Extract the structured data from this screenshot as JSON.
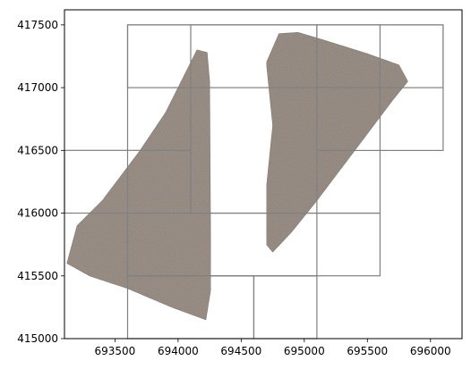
{
  "chart_data": {
    "type": "map",
    "title": "",
    "xlabel": "",
    "ylabel": "",
    "xlim": [
      693100,
      696250
    ],
    "ylim": [
      415000,
      417620
    ],
    "x_ticks": [
      693500,
      694000,
      694500,
      695000,
      695500,
      696000
    ],
    "y_ticks": [
      415000,
      415500,
      416000,
      416500,
      417000,
      417500
    ],
    "grid": false,
    "grid_lines": [
      {
        "x0": 693600,
        "y0": 415500,
        "x1": 695100,
        "y1": 417500
      },
      {
        "x0": 693600,
        "y0": 415000,
        "x1": 694600,
        "y1": 415500
      },
      {
        "x0": 694600,
        "y0": 415000,
        "x1": 695100,
        "y1": 415500
      },
      {
        "x0": 693600,
        "y0": 415500,
        "x1": 695600,
        "y1": 416000
      },
      {
        "x0": 694100,
        "y0": 416000,
        "x1": 695600,
        "y1": 417500
      },
      {
        "x0": 693100,
        "y0": 416000,
        "x1": 694100,
        "y1": 416500
      },
      {
        "x0": 695100,
        "y0": 416500,
        "x1": 696100,
        "y1": 417500
      },
      {
        "x0": 693600,
        "y0": 417000,
        "x1": 696100,
        "y1": 417500
      }
    ],
    "footprints": [
      {
        "name": "",
        "color": "#8c8078",
        "polygon": [
          [
            694150,
            417300
          ],
          [
            694230,
            417280
          ],
          [
            694250,
            417050
          ],
          [
            694260,
            415400
          ],
          [
            694220,
            415150
          ],
          [
            693950,
            415250
          ],
          [
            693600,
            415400
          ],
          [
            693300,
            415500
          ],
          [
            693120,
            415600
          ],
          [
            693200,
            415900
          ],
          [
            693400,
            416100
          ],
          [
            693700,
            416500
          ],
          [
            693900,
            416800
          ]
        ]
      },
      {
        "name": "",
        "color": "#8a7e74",
        "polygon": [
          [
            694800,
            417430
          ],
          [
            694950,
            417440
          ],
          [
            695150,
            417380
          ],
          [
            695500,
            417270
          ],
          [
            695750,
            417180
          ],
          [
            695820,
            417050
          ],
          [
            695700,
            416900
          ],
          [
            695400,
            416500
          ],
          [
            695100,
            416100
          ],
          [
            694900,
            415850
          ],
          [
            694750,
            415690
          ],
          [
            694700,
            415750
          ],
          [
            694700,
            416200
          ],
          [
            694750,
            416700
          ],
          [
            694720,
            417000
          ],
          [
            694700,
            417200
          ]
        ]
      }
    ]
  }
}
